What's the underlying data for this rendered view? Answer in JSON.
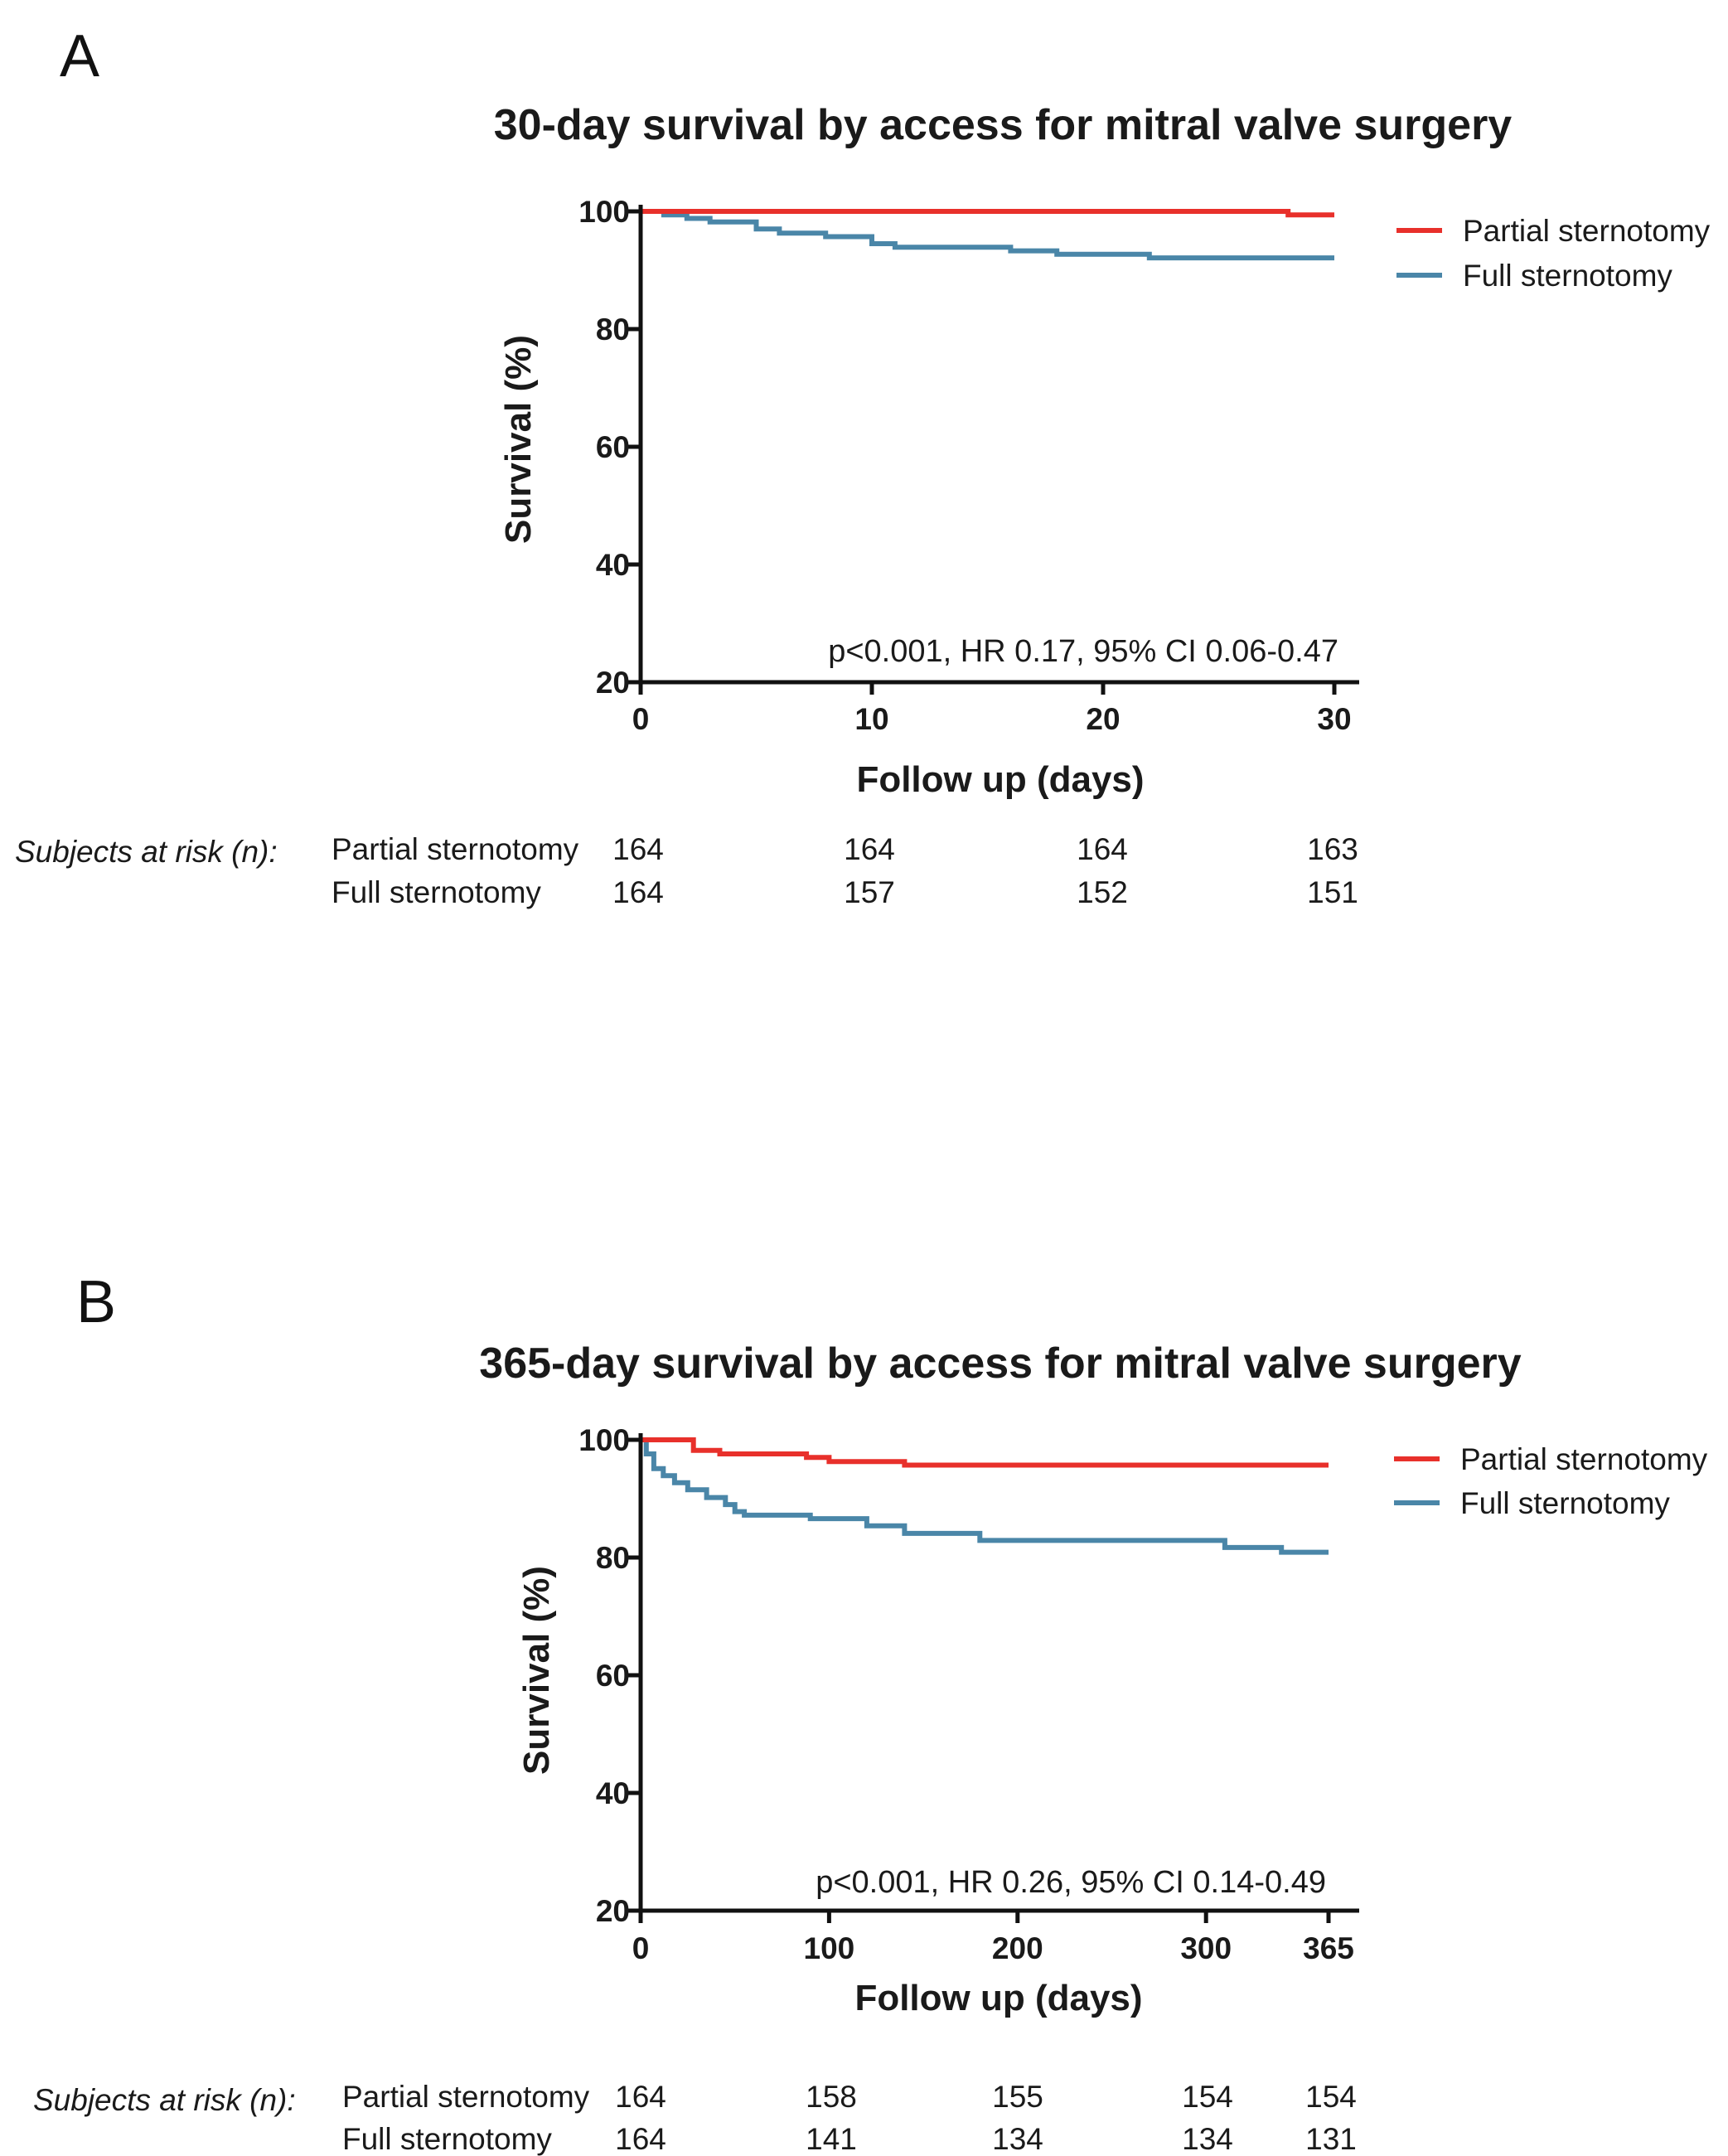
{
  "chart_data": [
    {
      "type": "line",
      "panel": "A",
      "title": "30-day survival by access for mitral valve surgery",
      "xlabel": "Follow up (days)",
      "ylabel": "Survival (%)",
      "xlim": [
        0,
        30
      ],
      "ylim": [
        20,
        100
      ],
      "x_ticks": [
        0,
        10,
        20,
        30
      ],
      "y_ticks": [
        20,
        40,
        60,
        80,
        100
      ],
      "legend_position": "top-right",
      "annotation": "p<0.001, HR 0.17, 95% CI 0.06-0.47",
      "series": [
        {
          "name": "Partial sternotomy",
          "color": "#e8302b",
          "x": [
            0,
            28.0,
            28.0,
            30
          ],
          "y": [
            100,
            100,
            99.4,
            99.4
          ]
        },
        {
          "name": "Full sternotomy",
          "color": "#4a86a8",
          "x": [
            0,
            1,
            1,
            2,
            2,
            3,
            3,
            5,
            5,
            6,
            6,
            8,
            8,
            10,
            10,
            11,
            11,
            16,
            16,
            18,
            18,
            22,
            22,
            30
          ],
          "y": [
            100,
            100,
            99.4,
            99.4,
            98.8,
            98.8,
            98.2,
            98.2,
            97.0,
            97.0,
            96.3,
            96.3,
            95.7,
            95.7,
            94.5,
            94.5,
            93.9,
            93.9,
            93.3,
            93.3,
            92.7,
            92.7,
            92.1,
            92.1
          ]
        }
      ],
      "risk_table": {
        "header": "Subjects at risk (n):",
        "time_points": [
          0,
          10,
          20,
          30
        ],
        "rows": [
          {
            "label": "Partial sternotomy",
            "values": [
              "164",
              "164",
              "164",
              "163"
            ]
          },
          {
            "label": "Full sternotomy",
            "values": [
              "164",
              "157",
              "152",
              "151"
            ]
          }
        ]
      }
    },
    {
      "type": "line",
      "panel": "B",
      "title": "365-day survival by access for mitral valve surgery",
      "xlabel": "Follow up (days)",
      "ylabel": "Survival (%)",
      "xlim": [
        0,
        365
      ],
      "ylim": [
        20,
        100
      ],
      "x_ticks": [
        0,
        100,
        200,
        300,
        365
      ],
      "y_ticks": [
        20,
        40,
        60,
        80,
        100
      ],
      "legend_position": "top-right",
      "annotation": "p<0.001, HR 0.26, 95% CI 0.14-0.49",
      "series": [
        {
          "name": "Partial sternotomy",
          "color": "#e8302b",
          "x": [
            0,
            28,
            28,
            42,
            42,
            88,
            88,
            100,
            100,
            140,
            140,
            365
          ],
          "y": [
            100,
            100,
            98.2,
            98.2,
            97.6,
            97.6,
            97.0,
            97.0,
            96.3,
            96.3,
            95.7,
            95.7
          ]
        },
        {
          "name": "Full sternotomy",
          "color": "#4a86a8",
          "x": [
            0,
            3,
            3,
            7,
            7,
            12,
            12,
            18,
            18,
            25,
            25,
            35,
            35,
            45,
            45,
            50,
            50,
            55,
            55,
            90,
            90,
            120,
            120,
            140,
            140,
            180,
            180,
            310,
            310,
            340,
            340,
            365
          ],
          "y": [
            100,
            100,
            97.6,
            97.6,
            95.1,
            95.1,
            93.9,
            93.9,
            92.7,
            92.7,
            91.5,
            91.5,
            90.2,
            90.2,
            89.0,
            89.0,
            87.8,
            87.8,
            87.2,
            87.2,
            86.6,
            86.6,
            85.4,
            85.4,
            84.1,
            84.1,
            82.9,
            82.9,
            81.7,
            81.7,
            80.9,
            80.9
          ]
        }
      ],
      "risk_table": {
        "header": "Subjects at risk (n):",
        "time_points": [
          0,
          100,
          200,
          300,
          365
        ],
        "rows": [
          {
            "label": "Partial sternotomy",
            "values": [
              "164",
              "158",
              "155",
              "154",
              "154"
            ]
          },
          {
            "label": "Full sternotomy",
            "values": [
              "164",
              "141",
              "134",
              "134",
              "131"
            ]
          }
        ]
      }
    }
  ]
}
